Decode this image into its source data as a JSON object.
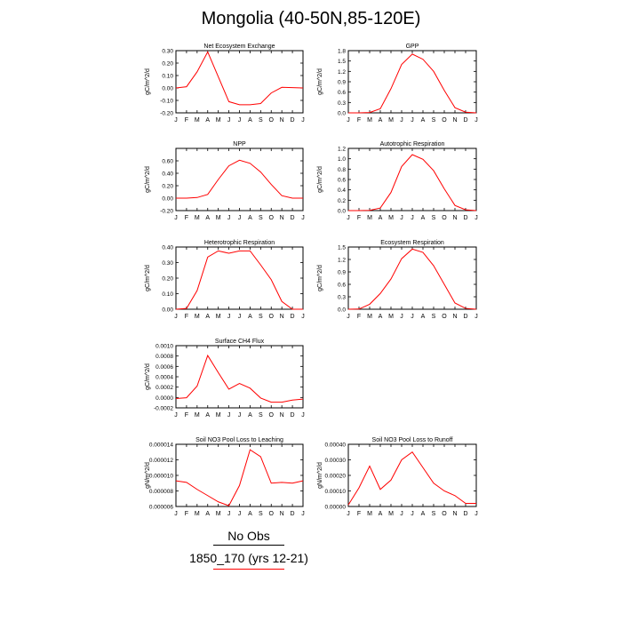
{
  "page": {
    "title": "Mongolia (40-50N,85-120E)"
  },
  "months": [
    "J",
    "F",
    "M",
    "A",
    "M",
    "J",
    "J",
    "A",
    "S",
    "O",
    "N",
    "D",
    "J"
  ],
  "legend": {
    "title": "No Obs",
    "case_label": "1850_170 (yrs 12-21)",
    "title_line_color": "#000000",
    "case_line_color": "#ff0000"
  },
  "series_color": "#ff0000",
  "chart_data": [
    {
      "type": "line",
      "title": "Net Ecosystem Exchange",
      "ylabel": "gC/m^2/d",
      "ylim": [
        -0.2,
        0.3
      ],
      "yticks": [
        "-0.20",
        "-0.10",
        "0.00",
        "0.10",
        "0.20",
        "0.30"
      ],
      "yticks_values": [
        -0.2,
        -0.1,
        0.0,
        0.1,
        0.2,
        0.3
      ],
      "x": [
        1,
        2,
        3,
        4,
        5,
        6,
        7,
        8,
        9,
        10,
        11,
        12,
        13
      ],
      "values": [
        0.0,
        0.01,
        0.13,
        0.29,
        0.09,
        -0.11,
        -0.135,
        -0.135,
        -0.125,
        -0.04,
        0.005,
        0.003,
        0.0
      ]
    },
    {
      "type": "line",
      "title": "GPP",
      "ylabel": "gC/m^2/d",
      "ylim": [
        0,
        1.8
      ],
      "yticks": [
        "0.0",
        "0.3",
        "0.6",
        "0.9",
        "1.2",
        "1.5",
        "1.8"
      ],
      "yticks_values": [
        0,
        0.3,
        0.6,
        0.9,
        1.2,
        1.5,
        1.8
      ],
      "x": [
        1,
        2,
        3,
        4,
        5,
        6,
        7,
        8,
        9,
        10,
        11,
        12,
        13
      ],
      "values": [
        0.0,
        0.0,
        0.01,
        0.12,
        0.7,
        1.4,
        1.7,
        1.55,
        1.2,
        0.65,
        0.15,
        0.02,
        0.0
      ]
    },
    {
      "type": "line",
      "title": "NPP",
      "ylabel": "gC/m^2/d",
      "ylim": [
        -0.2,
        0.8
      ],
      "yticks": [
        "-0.20",
        "0.00",
        "0.20",
        "0.40",
        "0.60"
      ],
      "yticks_values": [
        -0.2,
        0.0,
        0.2,
        0.4,
        0.6
      ],
      "x": [
        1,
        2,
        3,
        4,
        5,
        6,
        7,
        8,
        9,
        10,
        11,
        12,
        13
      ],
      "values": [
        0.0,
        0.0,
        0.01,
        0.06,
        0.3,
        0.52,
        0.61,
        0.56,
        0.42,
        0.22,
        0.04,
        0.0,
        0.0
      ]
    },
    {
      "type": "line",
      "title": "Autotrophic Respiration",
      "ylabel": "gC/m^2/d",
      "ylim": [
        0,
        1.2
      ],
      "yticks": [
        "0.0",
        "0.2",
        "0.4",
        "0.6",
        "0.8",
        "1.0",
        "1.2"
      ],
      "yticks_values": [
        0,
        0.2,
        0.4,
        0.6,
        0.8,
        1.0,
        1.2
      ],
      "x": [
        1,
        2,
        3,
        4,
        5,
        6,
        7,
        8,
        9,
        10,
        11,
        12,
        13
      ],
      "values": [
        0.0,
        0.0,
        0.005,
        0.05,
        0.35,
        0.85,
        1.08,
        0.99,
        0.77,
        0.42,
        0.1,
        0.015,
        0.0
      ]
    },
    {
      "type": "line",
      "title": "Heterotrophic Respiration",
      "ylabel": "gC/m^2/d",
      "ylim": [
        0,
        0.4
      ],
      "yticks": [
        "0.00",
        "0.10",
        "0.20",
        "0.30",
        "0.40"
      ],
      "yticks_values": [
        0,
        0.1,
        0.2,
        0.3,
        0.4
      ],
      "x": [
        1,
        2,
        3,
        4,
        5,
        6,
        7,
        8,
        9,
        10,
        11,
        12,
        13
      ],
      "values": [
        0.0,
        0.005,
        0.12,
        0.335,
        0.375,
        0.36,
        0.375,
        0.375,
        0.285,
        0.19,
        0.05,
        0.0,
        0.0
      ]
    },
    {
      "type": "line",
      "title": "Ecosystem Respiration",
      "ylabel": "gC/m^2/d",
      "ylim": [
        0,
        1.5
      ],
      "yticks": [
        "0.0",
        "0.3",
        "0.6",
        "0.9",
        "1.2",
        "1.5"
      ],
      "yticks_values": [
        0,
        0.3,
        0.6,
        0.9,
        1.2,
        1.5
      ],
      "x": [
        1,
        2,
        3,
        4,
        5,
        6,
        7,
        8,
        9,
        10,
        11,
        12,
        13
      ],
      "values": [
        0.0,
        0.005,
        0.12,
        0.38,
        0.73,
        1.22,
        1.45,
        1.37,
        1.05,
        0.6,
        0.15,
        0.02,
        0.0
      ]
    },
    {
      "type": "line",
      "title": "Surface CH4 Flux",
      "ylabel": "gC/m^2/d",
      "ylim": [
        -0.0002,
        0.001
      ],
      "yticks": [
        "-0.0002",
        "0.0000",
        "0.0002",
        "0.0004",
        "0.0006",
        "0.0008",
        "0.0010"
      ],
      "yticks_values": [
        -0.0002,
        0.0,
        0.0002,
        0.0004,
        0.0006,
        0.0008,
        0.001
      ],
      "x": [
        1,
        2,
        3,
        4,
        5,
        6,
        7,
        8,
        9,
        10,
        11,
        12,
        13
      ],
      "values": [
        -2e-05,
        -5e-06,
        0.00022,
        0.00081,
        0.00048,
        0.00016,
        0.00027,
        0.00018,
        -1e-05,
        -9e-05,
        -9e-05,
        -5e-05,
        -3e-05
      ]
    },
    {
      "type": "line",
      "title": "Soil NO3 Pool Loss to Leaching",
      "ylabel": "gN/m^2/d",
      "ylim": [
        6e-06,
        1.4e-05
      ],
      "yticks": [
        "0.000006",
        "0.000008",
        "0.000010",
        "0.000012",
        "0.000014"
      ],
      "yticks_values": [
        6e-06,
        8e-06,
        1e-05,
        1.2e-05,
        1.4e-05
      ],
      "x": [
        1,
        2,
        3,
        4,
        5,
        6,
        7,
        8,
        9,
        10,
        11,
        12,
        13
      ],
      "values": [
        9.3e-06,
        9.1e-06,
        8.2e-06,
        7.4e-06,
        6.6e-06,
        6.1e-06,
        8.7e-06,
        1.33e-05,
        1.24e-05,
        9e-06,
        9.1e-06,
        9e-06,
        9.3e-06
      ]
    },
    {
      "type": "line",
      "title": "Soil NO3 Pool Loss to Runoff",
      "ylabel": "gN/m^2/d",
      "ylim": [
        0,
        0.0004
      ],
      "yticks": [
        "0.00000",
        "0.00010",
        "0.00020",
        "0.00030",
        "0.00040"
      ],
      "yticks_values": [
        0,
        0.0001,
        0.0002,
        0.0003,
        0.0004
      ],
      "x": [
        1,
        2,
        3,
        4,
        5,
        6,
        7,
        8,
        9,
        10,
        11,
        12,
        13
      ],
      "values": [
        1e-05,
        0.00012,
        0.00026,
        0.00011,
        0.00017,
        0.0003,
        0.00035,
        0.00025,
        0.00015,
        0.0001,
        7e-05,
        2e-05,
        2e-05
      ]
    }
  ]
}
